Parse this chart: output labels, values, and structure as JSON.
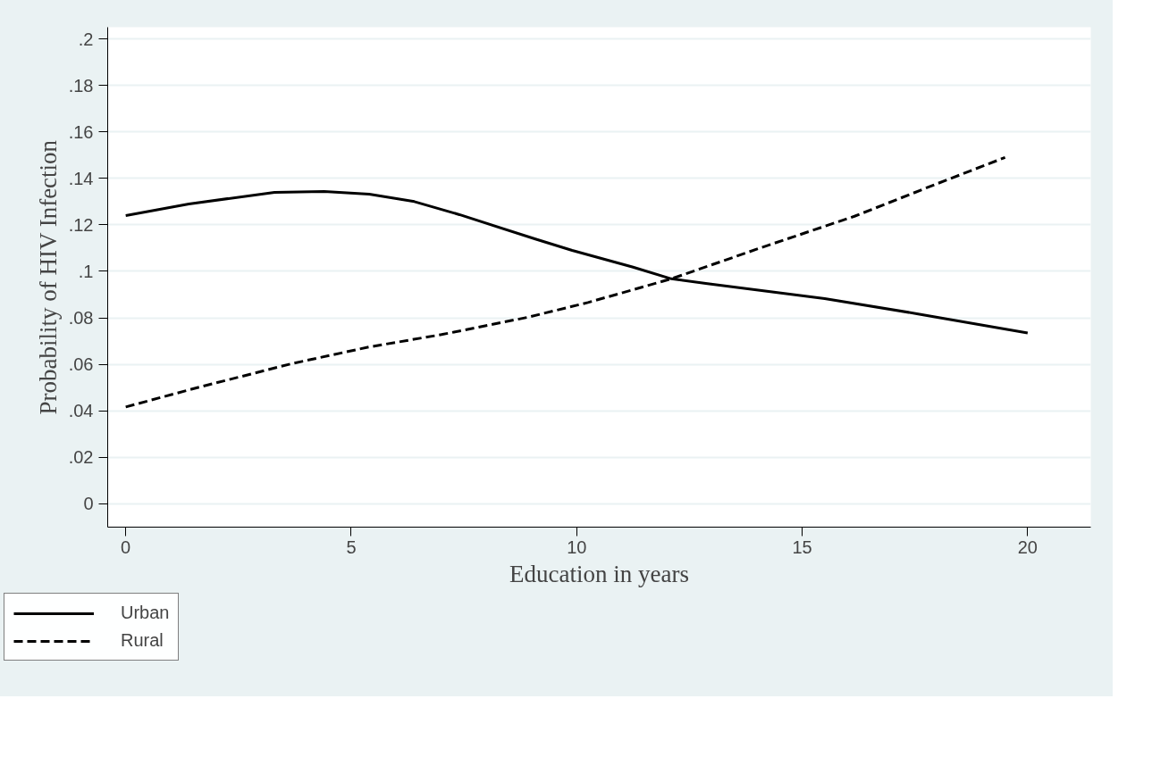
{
  "chart_data": {
    "type": "line",
    "xlabel": "Education in years",
    "ylabel": "Probability of HIV Infection",
    "xlim": [
      -0.4,
      21.4
    ],
    "ylim": [
      -0.01,
      0.205
    ],
    "xticks": [
      0,
      5,
      10,
      15,
      20
    ],
    "yticks": [
      {
        "value": 0,
        "label": "0"
      },
      {
        "value": 0.02,
        "label": ".02"
      },
      {
        "value": 0.04,
        "label": ".04"
      },
      {
        "value": 0.06,
        "label": ".06"
      },
      {
        "value": 0.08,
        "label": ".08"
      },
      {
        "value": 0.1,
        "label": ".1"
      },
      {
        "value": 0.12,
        "label": ".12"
      },
      {
        "value": 0.14,
        "label": ".14"
      },
      {
        "value": 0.16,
        "label": ".16"
      },
      {
        "value": 0.18,
        "label": ".18"
      },
      {
        "value": 0.2,
        "label": ".2"
      }
    ],
    "grid": "y",
    "legend": "bottom left",
    "series": [
      {
        "name": "Urban",
        "color": "#000000",
        "line_style": "solid",
        "x": [
          0,
          1.4,
          3.3,
          4.4,
          5.4,
          6.4,
          7.4,
          9.1,
          9.9,
          11.25,
          12.1,
          12.9,
          15.5,
          17.6,
          20
        ],
        "values": [
          0.124,
          0.129,
          0.134,
          0.1344,
          0.1332,
          0.13,
          0.1244,
          0.1138,
          0.109,
          0.1018,
          0.0968,
          0.0947,
          0.0883,
          0.0816,
          0.0735
        ]
      },
      {
        "name": "Rural",
        "color": "#000000",
        "line_style": "dashed",
        "x": [
          0,
          1.55,
          3.7,
          5.4,
          7.0,
          8.9,
          10.25,
          12.1,
          14.06,
          16.16,
          17.9,
          19.5
        ],
        "values": [
          0.0417,
          0.0498,
          0.0604,
          0.0675,
          0.0728,
          0.0802,
          0.0866,
          0.0968,
          0.11,
          0.1237,
          0.137,
          0.149
        ]
      }
    ]
  }
}
